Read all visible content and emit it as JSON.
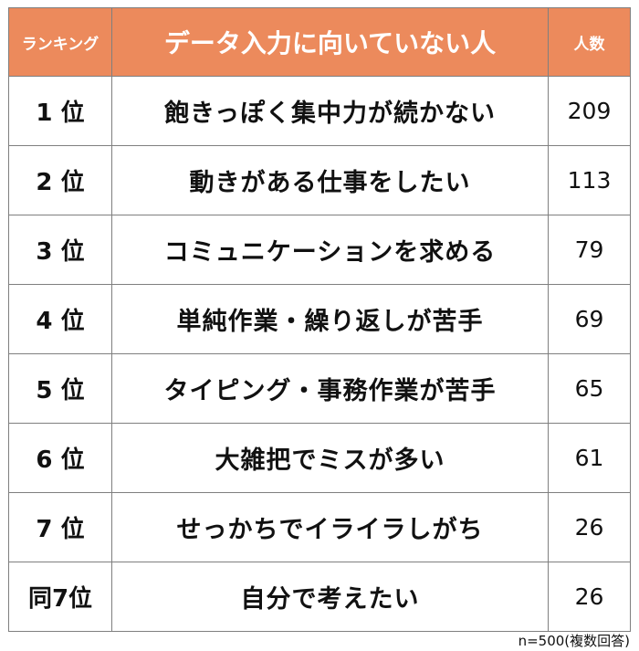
{
  "header": {
    "rank": "ランキング",
    "reason": "データ入力に向いていない人",
    "count": "人数"
  },
  "chart_data": {
    "type": "table",
    "columns": [
      "ランキング",
      "データ入力に向いていない人",
      "人数"
    ],
    "rows": [
      {
        "rank": "1 位",
        "reason": "飽きっぽく集中力が続かない",
        "count": 209
      },
      {
        "rank": "2 位",
        "reason": "動きがある仕事をしたい",
        "count": 113
      },
      {
        "rank": "3 位",
        "reason": "コミュニケーションを求める",
        "count": 79
      },
      {
        "rank": "4 位",
        "reason": "単純作業・繰り返しが苦手",
        "count": 69
      },
      {
        "rank": "5 位",
        "reason": "タイピング・事務作業が苦手",
        "count": 65
      },
      {
        "rank": "6 位",
        "reason": "大雑把でミスが多い",
        "count": 61
      },
      {
        "rank": "7 位",
        "reason": "せっかちでイライラしがち",
        "count": 26
      },
      {
        "rank": "同7位",
        "reason": "自分で考えたい",
        "count": 26
      }
    ]
  },
  "footnote": "n=500(複数回答)",
  "colors": {
    "header_bg": "#ec8a5c",
    "header_text": "#ffffff",
    "border": "#7f7f7f"
  }
}
